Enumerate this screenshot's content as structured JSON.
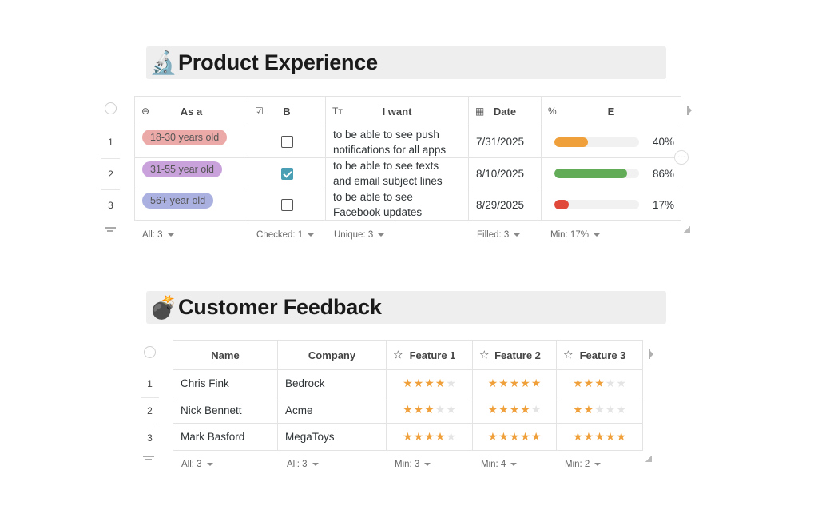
{
  "section1": {
    "emoji": "🔬",
    "title": "Product Experience",
    "columns": [
      {
        "icon": "pill-icon",
        "glyph": "⊖",
        "label": "As a"
      },
      {
        "icon": "checkbox-icon",
        "glyph": "☑",
        "label": "B"
      },
      {
        "icon": "text-icon",
        "glyph": "Tт",
        "label": "I want"
      },
      {
        "icon": "calendar-icon",
        "glyph": "▦",
        "label": "Date"
      },
      {
        "icon": "percent-icon",
        "glyph": "%",
        "label": "E"
      }
    ],
    "rows": [
      {
        "num": "1",
        "as_a": "18-30 years old",
        "pill_color": "#ebaaa7",
        "checked": false,
        "want_line1": "to be able to see push",
        "want_line2": "notifications for all apps",
        "date": "7/31/2025",
        "progress": 40,
        "progress_label": "40%",
        "bar_color": "#f0a03a"
      },
      {
        "num": "2",
        "as_a": "31-55 year old",
        "pill_color": "#c9a2dc",
        "checked": true,
        "want_line1": "to be able to see texts",
        "want_line2": "and email subject lines",
        "date": "8/10/2025",
        "progress": 86,
        "progress_label": "86%",
        "bar_color": "#62ac58"
      },
      {
        "num": "3",
        "as_a": "56+ year old",
        "pill_color": "#aab0e0",
        "checked": false,
        "want_line1": "to be able to see",
        "want_line2": "Facebook updates",
        "date": "8/29/2025",
        "progress": 17,
        "progress_label": "17%",
        "bar_color": "#e0483a"
      }
    ],
    "footer": [
      "All: 3",
      "Checked: 1",
      "Unique: 3",
      "Filled: 3",
      "Min: 17%"
    ]
  },
  "section2": {
    "emoji": "💣",
    "title": "Customer Feedback",
    "columns": [
      {
        "label": "Name",
        "icon": ""
      },
      {
        "label": "Company",
        "icon": ""
      },
      {
        "label": "Feature 1",
        "icon": "star-outline-icon"
      },
      {
        "label": "Feature 2",
        "icon": "star-outline-icon"
      },
      {
        "label": "Feature 3",
        "icon": "star-outline-icon"
      }
    ],
    "rows": [
      {
        "num": "1",
        "name": "Chris Fink",
        "company": "Bedrock",
        "ratings": [
          4,
          5,
          3
        ]
      },
      {
        "num": "2",
        "name": "Nick Bennett",
        "company": "Acme",
        "ratings": [
          3,
          4,
          2
        ]
      },
      {
        "num": "3",
        "name": "Mark Basford",
        "company": "MegaToys",
        "ratings": [
          4,
          5,
          5
        ]
      }
    ],
    "max_stars": 5,
    "footer": [
      "All: 3",
      "All: 3",
      "Min: 3",
      "Min: 4",
      "Min: 2"
    ]
  },
  "colors": {
    "star_on": "#f0a03a",
    "star_off": "#e4e4e4",
    "checkbox_checked": "#4a9fb5"
  }
}
